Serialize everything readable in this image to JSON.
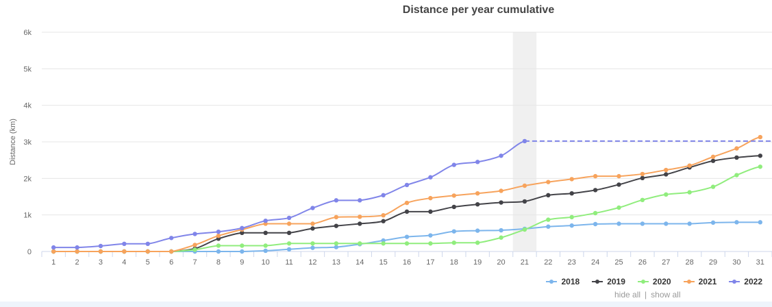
{
  "chart_data": {
    "type": "line",
    "title": "Distance per year cumulative",
    "ylabel": "Distance (km)",
    "xlabel": "",
    "ylim": [
      0,
      6000
    ],
    "yticks": [
      0,
      1000,
      2000,
      3000,
      4000,
      5000,
      6000
    ],
    "ytick_labels": [
      "0",
      "1k",
      "2k",
      "3k",
      "4k",
      "5k",
      "6k"
    ],
    "categories": [
      "1",
      "2",
      "3",
      "4",
      "5",
      "6",
      "7",
      "8",
      "9",
      "10",
      "11",
      "12",
      "13",
      "14",
      "15",
      "16",
      "17",
      "18",
      "19",
      "20",
      "21",
      "22",
      "23",
      "24",
      "25",
      "26",
      "27",
      "28",
      "29",
      "30",
      "31"
    ],
    "highlight_category": "21",
    "series": [
      {
        "name": "2018",
        "color": "#7cb5ec",
        "values": [
          0,
          0,
          0,
          0,
          0,
          0,
          0,
          0,
          0,
          20,
          60,
          100,
          120,
          200,
          300,
          400,
          440,
          550,
          570,
          580,
          620,
          680,
          710,
          750,
          760,
          760,
          760,
          760,
          790,
          800,
          800
        ]
      },
      {
        "name": "2019",
        "color": "#434348",
        "values": [
          0,
          0,
          0,
          0,
          0,
          0,
          80,
          350,
          510,
          510,
          510,
          630,
          700,
          760,
          830,
          1090,
          1090,
          1220,
          1290,
          1340,
          1370,
          1540,
          1590,
          1680,
          1830,
          2010,
          2110,
          2300,
          2480,
          2570,
          2620
        ]
      },
      {
        "name": "2020",
        "color": "#90ed7d",
        "values": [
          0,
          0,
          0,
          0,
          0,
          0,
          50,
          160,
          160,
          160,
          220,
          220,
          220,
          220,
          220,
          220,
          220,
          240,
          240,
          380,
          600,
          870,
          940,
          1050,
          1200,
          1410,
          1560,
          1620,
          1770,
          2090,
          2320
        ]
      },
      {
        "name": "2021",
        "color": "#f7a35c",
        "values": [
          0,
          0,
          0,
          0,
          0,
          0,
          180,
          430,
          600,
          760,
          760,
          760,
          940,
          950,
          990,
          1330,
          1460,
          1530,
          1590,
          1660,
          1800,
          1900,
          1980,
          2060,
          2060,
          2120,
          2230,
          2350,
          2590,
          2820,
          3130
        ]
      },
      {
        "name": "2022",
        "color": "#8085e9",
        "values": [
          110,
          110,
          150,
          210,
          210,
          370,
          480,
          540,
          640,
          840,
          920,
          1190,
          1400,
          1400,
          1540,
          1820,
          2030,
          2370,
          2450,
          2620,
          3020,
          null,
          null,
          null,
          null,
          null,
          null,
          null,
          null,
          null,
          null
        ],
        "projection": 3020
      }
    ]
  },
  "legend": {
    "items": [
      "2018",
      "2019",
      "2020",
      "2021",
      "2022"
    ]
  },
  "controls": {
    "hide_all": "hide all",
    "separator": "|",
    "show_all": "show all"
  }
}
